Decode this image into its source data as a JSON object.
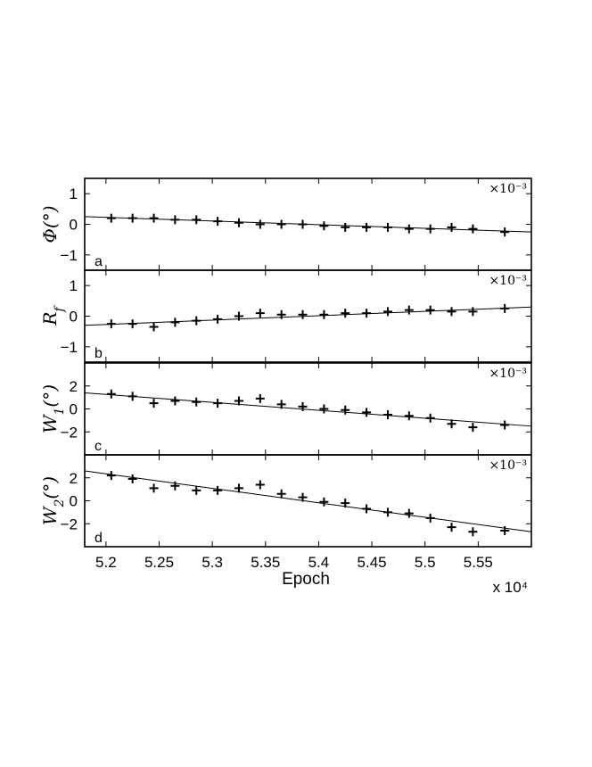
{
  "chart_data": [
    {
      "type": "scatter",
      "panel_letter": "a",
      "ylabel": "Φ(°)",
      "y_multiplier": "×10⁻³",
      "ylim": [
        -1.5,
        1.5
      ],
      "yticks": [
        -1,
        0,
        1
      ],
      "xlim": [
        5.18,
        5.6
      ],
      "x": [
        5.205,
        5.225,
        5.245,
        5.265,
        5.285,
        5.305,
        5.325,
        5.345,
        5.365,
        5.385,
        5.405,
        5.425,
        5.445,
        5.465,
        5.485,
        5.505,
        5.525,
        5.545,
        5.575
      ],
      "y": [
        0.2,
        0.2,
        0.2,
        0.15,
        0.15,
        0.1,
        0.05,
        0.0,
        0.0,
        0.0,
        -0.05,
        -0.1,
        -0.1,
        -0.1,
        -0.15,
        -0.15,
        -0.1,
        -0.15,
        -0.25
      ],
      "fit_line": {
        "x": [
          5.18,
          5.6
        ],
        "y": [
          0.25,
          -0.25
        ]
      }
    },
    {
      "type": "scatter",
      "panel_letter": "b",
      "ylabel": "R_f",
      "y_multiplier": "×10⁻³",
      "ylim": [
        -1.5,
        1.5
      ],
      "yticks": [
        -1,
        0,
        1
      ],
      "xlim": [
        5.18,
        5.6
      ],
      "x": [
        5.205,
        5.225,
        5.245,
        5.265,
        5.285,
        5.305,
        5.325,
        5.345,
        5.365,
        5.385,
        5.405,
        5.425,
        5.445,
        5.465,
        5.485,
        5.505,
        5.525,
        5.545,
        5.575
      ],
      "y": [
        -0.25,
        -0.25,
        -0.35,
        -0.2,
        -0.15,
        -0.1,
        0.0,
        0.1,
        0.05,
        0.05,
        0.05,
        0.1,
        0.1,
        0.15,
        0.2,
        0.2,
        0.15,
        0.15,
        0.25
      ],
      "fit_line": {
        "x": [
          5.18,
          5.6
        ],
        "y": [
          -0.3,
          0.3
        ]
      }
    },
    {
      "type": "scatter",
      "panel_letter": "c",
      "ylabel": "W_1(°)",
      "y_multiplier": "×10⁻³",
      "ylim": [
        -4,
        4
      ],
      "yticks": [
        -2,
        0,
        2
      ],
      "xlim": [
        5.18,
        5.6
      ],
      "x": [
        5.205,
        5.225,
        5.245,
        5.265,
        5.285,
        5.305,
        5.325,
        5.345,
        5.365,
        5.385,
        5.405,
        5.425,
        5.445,
        5.465,
        5.485,
        5.505,
        5.525,
        5.545,
        5.575
      ],
      "y": [
        1.3,
        1.1,
        0.5,
        0.7,
        0.6,
        0.5,
        0.7,
        0.9,
        0.4,
        0.2,
        0.0,
        -0.1,
        -0.3,
        -0.5,
        -0.6,
        -0.8,
        -1.3,
        -1.6,
        -1.4
      ],
      "fit_line": {
        "x": [
          5.18,
          5.6
        ],
        "y": [
          1.4,
          -1.5
        ]
      }
    },
    {
      "type": "scatter",
      "panel_letter": "d",
      "ylabel": "W_2(°)",
      "y_multiplier": "×10⁻³",
      "ylim": [
        -4,
        4
      ],
      "yticks": [
        -2,
        0,
        2
      ],
      "xlim": [
        5.18,
        5.6
      ],
      "xticks": [
        5.2,
        5.25,
        5.3,
        5.35,
        5.4,
        5.45,
        5.5,
        5.55
      ],
      "xticklabels": [
        "5.2",
        "5.25",
        "5.3",
        "5.35",
        "5.4",
        "5.45",
        "5.5",
        "5.55"
      ],
      "xlabel": "Epoch",
      "x_multiplier": "x 10⁴",
      "x": [
        5.205,
        5.225,
        5.245,
        5.265,
        5.285,
        5.305,
        5.325,
        5.345,
        5.365,
        5.385,
        5.405,
        5.425,
        5.445,
        5.465,
        5.485,
        5.505,
        5.525,
        5.545,
        5.575
      ],
      "y": [
        2.2,
        1.9,
        1.1,
        1.3,
        0.9,
        0.9,
        1.1,
        1.4,
        0.6,
        0.3,
        -0.1,
        -0.2,
        -0.7,
        -1.0,
        -1.1,
        -1.5,
        -2.3,
        -2.7,
        -2.6
      ],
      "fit_line": {
        "x": [
          5.18,
          5.6
        ],
        "y": [
          2.6,
          -2.7
        ]
      }
    }
  ]
}
